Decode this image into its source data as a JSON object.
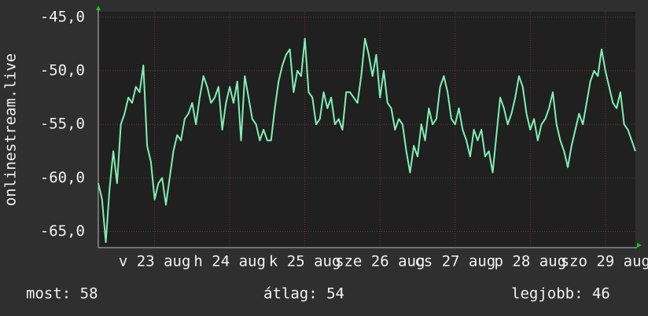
{
  "chart_data": {
    "type": "line",
    "ylabel": "onlinestream.live",
    "ylim": [
      -66.5,
      -44.5
    ],
    "yticks": [
      {
        "value": -45,
        "label": "-45,0"
      },
      {
        "value": -50,
        "label": "-50,0"
      },
      {
        "value": -55,
        "label": "-55,0"
      },
      {
        "value": -60,
        "label": "-60,0"
      },
      {
        "value": -65,
        "label": "-65,0"
      }
    ],
    "grid": true,
    "categories": [
      null,
      null,
      null,
      null,
      null,
      null,
      null,
      null,
      null,
      null,
      null,
      null,
      null,
      null,
      null,
      "v 23 aug",
      null,
      null,
      null,
      null,
      null,
      null,
      null,
      null,
      null,
      null,
      null,
      null,
      null,
      null,
      null,
      null,
      null,
      null,
      null,
      "h 24 aug",
      null,
      null,
      null,
      null,
      null,
      null,
      null,
      null,
      null,
      null,
      null,
      null,
      null,
      null,
      null,
      null,
      null,
      null,
      null,
      "k 25 aug",
      null,
      null,
      null,
      null,
      null,
      null,
      null,
      null,
      null,
      null,
      null,
      null,
      null,
      null,
      null,
      null,
      null,
      null,
      null,
      "sze 26 aug",
      null,
      null,
      null,
      null,
      null,
      null,
      null,
      null,
      null,
      null,
      null,
      null,
      null,
      null,
      null,
      null,
      null,
      null,
      null,
      "cs 27 aug",
      null,
      null,
      null,
      null,
      null,
      null,
      null,
      null,
      null,
      null,
      null,
      null,
      null,
      null,
      null,
      null,
      null,
      null,
      null,
      "p 28 aug",
      null,
      null,
      null,
      null,
      null,
      null,
      null,
      null,
      null,
      null,
      null,
      null,
      null,
      null,
      null,
      null,
      null,
      null,
      null,
      "szo 29 aug",
      null,
      null,
      null,
      null,
      null,
      null,
      null,
      null
    ],
    "series": [
      {
        "color": "#7ff0b4",
        "values": [
          -60.5,
          -62,
          -66,
          -61,
          -57.5,
          -60.5,
          -55,
          -54,
          -52.5,
          -53,
          -51.5,
          -52,
          -49.5,
          -57,
          -58.5,
          -62,
          -60.5,
          -60,
          -62.5,
          -60,
          -57.5,
          -56,
          -56.5,
          -54.5,
          -54,
          -53,
          -55,
          -52.5,
          -50.5,
          -51.5,
          -53,
          -52.5,
          -51.5,
          -55.5,
          -53,
          -51.5,
          -53,
          -51,
          -56.5,
          -50.5,
          -52.5,
          -54.5,
          -55,
          -56.5,
          -55.5,
          -56.5,
          -56.5,
          -53.5,
          -51,
          -49.5,
          -48.5,
          -48,
          -52,
          -50,
          -50.5,
          -47,
          -52,
          -52.5,
          -55,
          -54.5,
          -52,
          -53.5,
          -52.5,
          -55,
          -54.5,
          -55.5,
          -52,
          -52,
          -52.5,
          -53,
          -50.5,
          -47,
          -48.5,
          -50.5,
          -48.5,
          -52.5,
          -50,
          -53,
          -53.5,
          -55.5,
          -54.5,
          -55,
          -57.5,
          -59.5,
          -57,
          -58,
          -55,
          -56.5,
          -53.5,
          -55,
          -54.5,
          -51.5,
          -50.5,
          -52,
          -54.5,
          -55,
          -53.5,
          -55.5,
          -56.5,
          -58,
          -55.5,
          -56.5,
          -55.5,
          -58,
          -57.5,
          -59.5,
          -56,
          -52.5,
          -53.5,
          -55,
          -54,
          -52.5,
          -50.5,
          -51.5,
          -54,
          -55.5,
          -54.5,
          -56.5,
          -55,
          -54.5,
          -53.5,
          -52,
          -55,
          -56.5,
          -57.5,
          -59,
          -57,
          -55.5,
          -54,
          -55,
          -53,
          -51,
          -50,
          -50.5,
          -48,
          -50,
          -51.5,
          -53,
          -53.5,
          -52,
          -55,
          -55.5,
          -56.5,
          -57.5
        ]
      }
    ]
  },
  "footer": [
    "most: 58",
    "átlag: 54",
    "legjobb: 46"
  ]
}
